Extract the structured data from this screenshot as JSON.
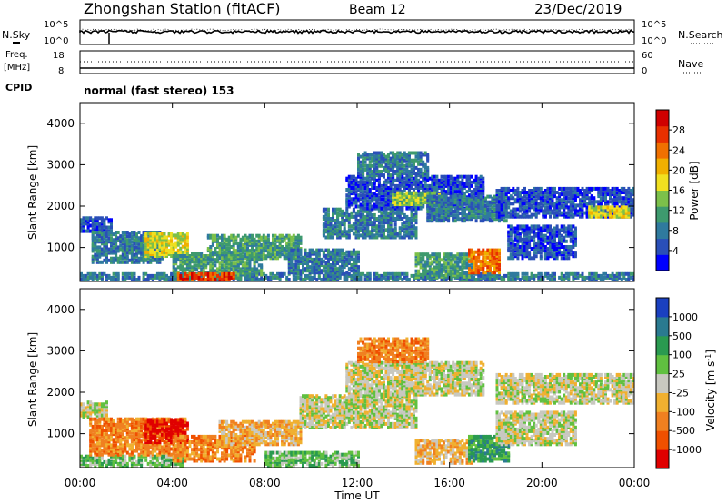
{
  "header": {
    "station": "Zhongshan Station (fitACF)",
    "beam": "Beam 12",
    "date": "23/Dec/2019"
  },
  "top_panels": {
    "nsky_label": "N.Sky",
    "nsky_ticks": [
      "10^5",
      "10^0"
    ],
    "nsearch_label": "N.Search",
    "nsearch_ticks": [
      "10^5",
      "10^0"
    ],
    "freq_label": "Freq.",
    "freq_unit": "[MHz]",
    "freq_ticks": [
      "18",
      "8"
    ],
    "nave_label": "Nave",
    "nave_ticks": [
      "60",
      "0"
    ],
    "cpid_label": "CPID",
    "cpid_text": "normal (fast stereo) 153"
  },
  "chart_data": [
    {
      "type": "heatmap",
      "name": "power",
      "ylabel": "Slant Range [km]",
      "yticks": [
        1000,
        2000,
        3000,
        4000
      ],
      "ylim": [
        180,
        4500
      ],
      "xlim": [
        0,
        24
      ],
      "colorbar": {
        "label": "Power [dB]",
        "ticks": [
          "28",
          "24",
          "20",
          "16",
          "12",
          "8",
          "4"
        ],
        "colors": [
          "#0000ff",
          "#2a4fb8",
          "#2f7a9e",
          "#3e9a6e",
          "#7cc04a",
          "#f0e020",
          "#f0b000",
          "#f07000",
          "#e83000",
          "#d00000"
        ]
      },
      "regions": [
        {
          "t0": 0.0,
          "t1": 1.4,
          "r0": 1350,
          "r1": 1700,
          "level": 1
        },
        {
          "t0": 0.0,
          "t1": 24.0,
          "r0": 180,
          "r1": 330,
          "level": 2
        },
        {
          "t0": 0.5,
          "t1": 3.6,
          "r0": 600,
          "r1": 1350,
          "level": 2
        },
        {
          "t0": 2.8,
          "t1": 4.6,
          "r0": 750,
          "r1": 1300,
          "level": 5
        },
        {
          "t0": 4.0,
          "t1": 7.8,
          "r0": 300,
          "r1": 800,
          "level": 3
        },
        {
          "t0": 4.2,
          "t1": 6.6,
          "r0": 180,
          "r1": 320,
          "level": 8
        },
        {
          "t0": 5.5,
          "t1": 9.5,
          "r0": 700,
          "r1": 1250,
          "level": 3
        },
        {
          "t0": 9.0,
          "t1": 12.0,
          "r0": 350,
          "r1": 900,
          "level": 2
        },
        {
          "t0": 10.5,
          "t1": 14.5,
          "r0": 1200,
          "r1": 1900,
          "level": 2
        },
        {
          "t0": 11.5,
          "t1": 17.5,
          "r0": 1900,
          "r1": 2700,
          "level": 1
        },
        {
          "t0": 12.0,
          "t1": 15.0,
          "r0": 2700,
          "r1": 3250,
          "level": 2
        },
        {
          "t0": 13.5,
          "t1": 15.5,
          "r0": 2000,
          "r1": 2300,
          "level": 4
        },
        {
          "t0": 14.5,
          "t1": 17.0,
          "r0": 250,
          "r1": 800,
          "level": 3
        },
        {
          "t0": 16.8,
          "t1": 18.2,
          "r0": 350,
          "r1": 900,
          "level": 7
        },
        {
          "t0": 15.0,
          "t1": 18.5,
          "r0": 1600,
          "r1": 2200,
          "level": 2
        },
        {
          "t0": 18.0,
          "t1": 24.0,
          "r0": 1700,
          "r1": 2400,
          "level": 1
        },
        {
          "t0": 22.0,
          "t1": 23.8,
          "r0": 1700,
          "r1": 1950,
          "level": 5
        },
        {
          "t0": 18.5,
          "t1": 21.5,
          "r0": 700,
          "r1": 1500,
          "level": 1
        }
      ]
    },
    {
      "type": "heatmap",
      "name": "velocity",
      "ylabel": "Slant Range [km]",
      "yticks": [
        1000,
        2000,
        3000,
        4000
      ],
      "ylim": [
        180,
        4500
      ],
      "xlim": [
        0,
        24
      ],
      "xlabel": "Time UT",
      "xticks": [
        "00:00",
        "04:00",
        "08:00",
        "12:00",
        "16:00",
        "20:00",
        "00:00"
      ],
      "colorbar": {
        "label": "Velocity [m s",
        "label_sup": "-1",
        "label_end": "]",
        "ticks": [
          "1000",
          "500",
          "100",
          "25",
          "-25",
          "-100",
          "-500",
          "-1000"
        ],
        "colors": [
          "#e00000",
          "#f05000",
          "#f08020",
          "#f0b030",
          "#c8c8c0",
          "#60c040",
          "#2a9a50",
          "#2a7a90",
          "#1a40c0"
        ]
      },
      "regions": [
        {
          "t0": 0.0,
          "t1": 1.2,
          "r0": 1350,
          "r1": 1750,
          "level": 4
        },
        {
          "t0": 0.0,
          "t1": 4.5,
          "r0": 180,
          "r1": 450,
          "level": 5
        },
        {
          "t0": 0.4,
          "t1": 4.6,
          "r0": 450,
          "r1": 1350,
          "level": 2
        },
        {
          "t0": 2.8,
          "t1": 4.6,
          "r0": 750,
          "r1": 1300,
          "level": 0
        },
        {
          "t0": 4.0,
          "t1": 7.5,
          "r0": 300,
          "r1": 900,
          "level": 2
        },
        {
          "t0": 6.0,
          "t1": 9.5,
          "r0": 700,
          "r1": 1250,
          "level": 3
        },
        {
          "t0": 8.0,
          "t1": 12.0,
          "r0": 180,
          "r1": 500,
          "level": 5
        },
        {
          "t0": 9.5,
          "t1": 14.5,
          "r0": 1100,
          "r1": 1900,
          "level": 4
        },
        {
          "t0": 11.5,
          "t1": 17.5,
          "r0": 1900,
          "r1": 2700,
          "level": 4
        },
        {
          "t0": 12.0,
          "t1": 15.0,
          "r0": 2700,
          "r1": 3250,
          "level": 2
        },
        {
          "t0": 14.5,
          "t1": 17.0,
          "r0": 250,
          "r1": 800,
          "level": 3
        },
        {
          "t0": 16.8,
          "t1": 18.6,
          "r0": 300,
          "r1": 900,
          "level": 6
        },
        {
          "t0": 18.0,
          "t1": 24.0,
          "r0": 1700,
          "r1": 2400,
          "level": 4
        },
        {
          "t0": 18.0,
          "t1": 21.5,
          "r0": 700,
          "r1": 1500,
          "level": 4
        }
      ]
    }
  ]
}
